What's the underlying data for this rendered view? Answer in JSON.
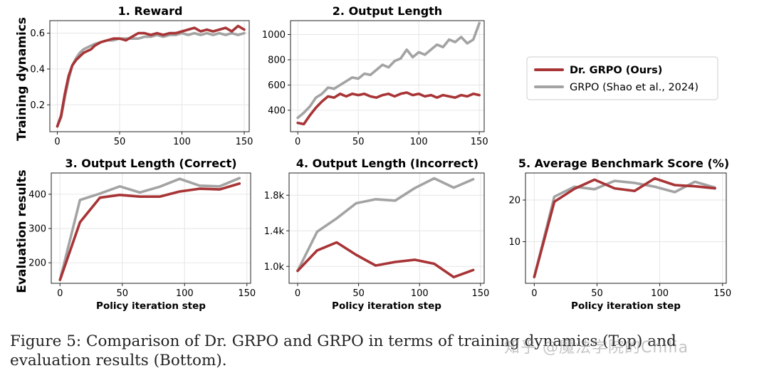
{
  "row_labels": {
    "top": "Training dynamics",
    "bottom": "Evaluation results"
  },
  "colors": {
    "drgrpo": "#a83436",
    "grpo": "#a3a3a3"
  },
  "legend": {
    "drgrpo": "Dr. GRPO (Ours)",
    "grpo": "GRPO (Shao et al., 2024)"
  },
  "caption": "Figure 5: Comparison of Dr. GRPO and GRPO in terms of training dynamics (Top) and evaluation results (Bottom).",
  "watermark": "知乎 @魔法学院的Chilia",
  "chart_data": [
    {
      "id": "p1",
      "type": "line",
      "title": "1. Reward",
      "xlabel": "",
      "ylabel": "",
      "xlim": [
        -6,
        154
      ],
      "ylim": [
        0.05,
        0.67
      ],
      "xticks": [
        0,
        50,
        100,
        150
      ],
      "yticks": [
        0.2,
        0.4,
        0.6
      ],
      "ytick_labels": [
        "0.2",
        "0.4",
        "0.6"
      ],
      "xtick_labels": [
        "0",
        "50",
        "100",
        "150"
      ],
      "series": [
        {
          "name": "GRPO (Shao et al., 2024)",
          "key": "grpo",
          "x": [
            0,
            3,
            6,
            9,
            12,
            15,
            18,
            21,
            24,
            27,
            30,
            35,
            40,
            45,
            50,
            55,
            60,
            65,
            70,
            75,
            80,
            85,
            90,
            95,
            100,
            105,
            110,
            115,
            120,
            125,
            130,
            135,
            140,
            145,
            150
          ],
          "y": [
            0.08,
            0.13,
            0.24,
            0.34,
            0.42,
            0.46,
            0.49,
            0.51,
            0.52,
            0.53,
            0.54,
            0.55,
            0.56,
            0.56,
            0.57,
            0.57,
            0.57,
            0.57,
            0.58,
            0.58,
            0.59,
            0.58,
            0.59,
            0.59,
            0.6,
            0.59,
            0.6,
            0.59,
            0.6,
            0.59,
            0.6,
            0.59,
            0.6,
            0.59,
            0.6
          ]
        },
        {
          "name": "Dr. GRPO (Ours)",
          "key": "drgrpo",
          "x": [
            0,
            3,
            6,
            9,
            12,
            15,
            18,
            21,
            24,
            27,
            30,
            35,
            40,
            45,
            50,
            55,
            60,
            65,
            70,
            75,
            80,
            85,
            90,
            95,
            100,
            105,
            110,
            115,
            120,
            125,
            130,
            135,
            140,
            145,
            150
          ],
          "y": [
            0.08,
            0.14,
            0.26,
            0.36,
            0.42,
            0.45,
            0.47,
            0.49,
            0.5,
            0.51,
            0.53,
            0.55,
            0.56,
            0.57,
            0.57,
            0.56,
            0.58,
            0.6,
            0.6,
            0.59,
            0.6,
            0.59,
            0.6,
            0.6,
            0.61,
            0.62,
            0.63,
            0.61,
            0.62,
            0.61,
            0.62,
            0.63,
            0.61,
            0.64,
            0.62
          ]
        }
      ]
    },
    {
      "id": "p2",
      "type": "line",
      "title": "2. Output Length",
      "xlabel": "",
      "ylabel": "",
      "xlim": [
        -6,
        154
      ],
      "ylim": [
        230,
        1110
      ],
      "xticks": [
        0,
        50,
        100,
        150
      ],
      "yticks": [
        400,
        600,
        800,
        1000
      ],
      "ytick_labels": [
        "400",
        "600",
        "800",
        "1000"
      ],
      "xtick_labels": [
        "0",
        "50",
        "100",
        "150"
      ],
      "series": [
        {
          "name": "GRPO (Shao et al., 2024)",
          "key": "grpo",
          "x": [
            0,
            5,
            10,
            15,
            20,
            25,
            30,
            35,
            40,
            45,
            50,
            55,
            60,
            65,
            70,
            75,
            80,
            85,
            90,
            95,
            100,
            105,
            110,
            115,
            120,
            125,
            130,
            135,
            140,
            145,
            150
          ],
          "y": [
            340,
            380,
            430,
            500,
            530,
            580,
            570,
            600,
            630,
            660,
            650,
            690,
            680,
            720,
            760,
            740,
            790,
            810,
            880,
            820,
            860,
            840,
            880,
            920,
            900,
            960,
            940,
            980,
            930,
            960,
            1090
          ]
        },
        {
          "name": "Dr. GRPO (Ours)",
          "key": "drgrpo",
          "x": [
            0,
            5,
            10,
            15,
            20,
            25,
            30,
            35,
            40,
            45,
            50,
            55,
            60,
            65,
            70,
            75,
            80,
            85,
            90,
            95,
            100,
            105,
            110,
            115,
            120,
            125,
            130,
            135,
            140,
            145,
            150
          ],
          "y": [
            300,
            290,
            360,
            420,
            470,
            510,
            500,
            530,
            510,
            530,
            520,
            530,
            510,
            500,
            520,
            530,
            510,
            530,
            540,
            520,
            530,
            510,
            520,
            500,
            520,
            510,
            500,
            520,
            510,
            530,
            520
          ]
        }
      ]
    },
    {
      "id": "p3",
      "type": "line",
      "title": "3. Output Length (Correct)",
      "xlabel": "Policy iteration step",
      "ylabel": "",
      "xlim": [
        -7,
        153
      ],
      "ylim": [
        140,
        462
      ],
      "xticks": [
        0,
        50,
        100,
        150
      ],
      "yticks": [
        200,
        300,
        400
      ],
      "ytick_labels": [
        "200",
        "300",
        "400"
      ],
      "xtick_labels": [
        "0",
        "50",
        "100",
        "150"
      ],
      "series": [
        {
          "name": "GRPO (Shao et al., 2024)",
          "key": "grpo",
          "x": [
            0,
            16,
            32,
            48,
            64,
            80,
            96,
            112,
            128,
            144
          ],
          "y": [
            150,
            383,
            402,
            423,
            405,
            422,
            445,
            425,
            423,
            447
          ]
        },
        {
          "name": "Dr. GRPO (Ours)",
          "key": "drgrpo",
          "x": [
            0,
            16,
            32,
            48,
            64,
            80,
            96,
            112,
            128,
            144
          ],
          "y": [
            150,
            318,
            390,
            398,
            393,
            393,
            408,
            416,
            414,
            431
          ]
        }
      ]
    },
    {
      "id": "p4",
      "type": "line",
      "title": "4. Output Length (Incorrect)",
      "xlabel": "Policy iteration step",
      "ylabel": "",
      "xlim": [
        -7,
        153
      ],
      "ylim": [
        810,
        2050
      ],
      "xticks": [
        0,
        50,
        100,
        150
      ],
      "yticks": [
        1000,
        1400,
        1800
      ],
      "ytick_labels": [
        "1.0k",
        "1.4k",
        "1.8k"
      ],
      "xtick_labels": [
        "0",
        "50",
        "100",
        "150"
      ],
      "series": [
        {
          "name": "GRPO (Shao et al., 2024)",
          "key": "grpo",
          "x": [
            0,
            16,
            32,
            48,
            64,
            80,
            96,
            112,
            128,
            144
          ],
          "y": [
            950,
            1390,
            1540,
            1710,
            1755,
            1740,
            1880,
            1990,
            1885,
            1980
          ]
        },
        {
          "name": "Dr. GRPO (Ours)",
          "key": "drgrpo",
          "x": [
            0,
            16,
            32,
            48,
            64,
            80,
            96,
            112,
            128,
            144
          ],
          "y": [
            950,
            1180,
            1270,
            1130,
            1010,
            1050,
            1075,
            1030,
            880,
            960
          ]
        }
      ]
    },
    {
      "id": "p5",
      "type": "line",
      "title": "5. Average Benchmark Score (%)",
      "xlabel": "Policy iteration step",
      "ylabel": "",
      "xlim": [
        -7,
        153
      ],
      "ylim": [
        0,
        26.5
      ],
      "xticks": [
        0,
        50,
        100,
        150
      ],
      "yticks": [
        10,
        20
      ],
      "ytick_labels": [
        "10",
        "20"
      ],
      "xtick_labels": [
        "0",
        "50",
        "100",
        "150"
      ],
      "series": [
        {
          "name": "GRPO (Shao et al., 2024)",
          "key": "grpo",
          "x": [
            0,
            16,
            32,
            48,
            64,
            80,
            96,
            112,
            128,
            144
          ],
          "y": [
            1.5,
            20.8,
            23.2,
            22.6,
            24.6,
            24.1,
            23.2,
            21.9,
            24.4,
            23.0
          ]
        },
        {
          "name": "Dr. GRPO (Ours)",
          "key": "drgrpo",
          "x": [
            0,
            16,
            32,
            48,
            64,
            80,
            96,
            112,
            128,
            144
          ],
          "y": [
            1.5,
            19.6,
            22.7,
            24.9,
            22.8,
            22.2,
            25.2,
            23.6,
            23.3,
            22.8
          ]
        }
      ]
    }
  ]
}
